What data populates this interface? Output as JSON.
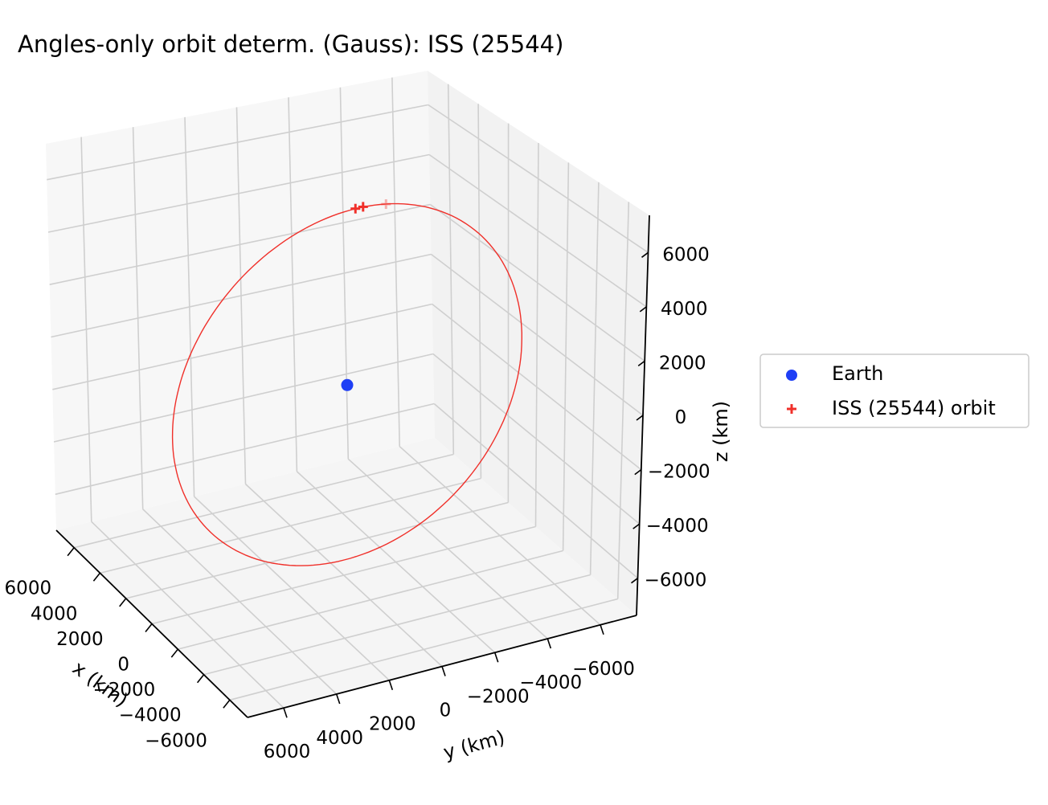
{
  "chart_data": {
    "type": "scatter3d",
    "title": "Angles-only orbit determ. (Gauss): ISS (25544)",
    "axes": {
      "x": {
        "label": "x (km)",
        "ticks": [
          6000,
          4000,
          2000,
          0,
          -2000,
          -4000,
          -6000
        ],
        "tick_labels": [
          "6000",
          "4000",
          "2000",
          "0",
          "−2000",
          "−4000",
          "−6000"
        ]
      },
      "y": {
        "label": "y (km)",
        "ticks": [
          6000,
          4000,
          2000,
          0,
          -2000,
          -4000,
          -6000
        ],
        "tick_labels": [
          "6000",
          "4000",
          "2000",
          "0",
          "−2000",
          "−4000",
          "−6000"
        ]
      },
      "z": {
        "label": "z (km)",
        "ticks": [
          6000,
          4000,
          2000,
          0,
          -2000,
          -4000,
          -6000
        ],
        "tick_labels": [
          "6000",
          "4000",
          "2000",
          "0",
          "−2000",
          "−4000",
          "−6000"
        ]
      }
    },
    "grid": true,
    "legend_position": "right",
    "series": [
      {
        "name": "Earth",
        "marker": "circle",
        "color": "#1f3ff5",
        "points": [
          [
            0,
            0,
            0
          ]
        ]
      },
      {
        "name": "ISS (25544) orbit",
        "marker": "plus",
        "color": "#f0302a",
        "orbit_radius_km": 6780,
        "points": [
          [
            0,
            -200,
            6780
          ],
          [
            0,
            -500,
            6770
          ],
          [
            0,
            -1400,
            6630
          ]
        ]
      }
    ]
  }
}
